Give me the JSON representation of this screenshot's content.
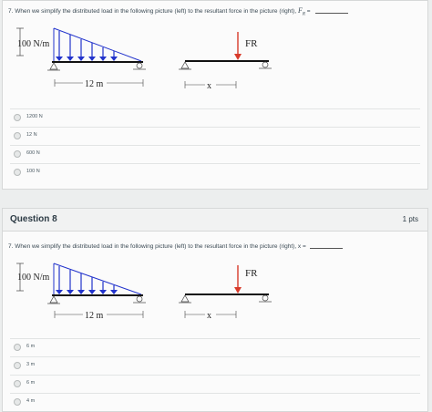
{
  "q7": {
    "text": "7. When we simplify the distributed load in the following picture (left) to the resultant force in the picture (right),",
    "fr_symbol": "FR",
    "suffix": "= ",
    "load_label": "100 N/m",
    "length_label": "12 m",
    "force_label": "FR",
    "x_label": "x",
    "answers": [
      "1200 N",
      "12 N",
      "600 N",
      "100 N"
    ]
  },
  "q8": {
    "title": "Question 8",
    "points": "1 pts",
    "text": "7. When we simplify the distributed load in the following picture (left) to the resultant force in the picture (right), x =",
    "load_label": "100 N/m",
    "length_label": "12 m",
    "force_label": "FR",
    "x_label": "x",
    "answers": [
      "6 m",
      "3 m",
      "6 m",
      "4 m"
    ]
  },
  "colors": {
    "load_arrows": "#2233cc",
    "resultant_arrow": "#d83a2a"
  }
}
